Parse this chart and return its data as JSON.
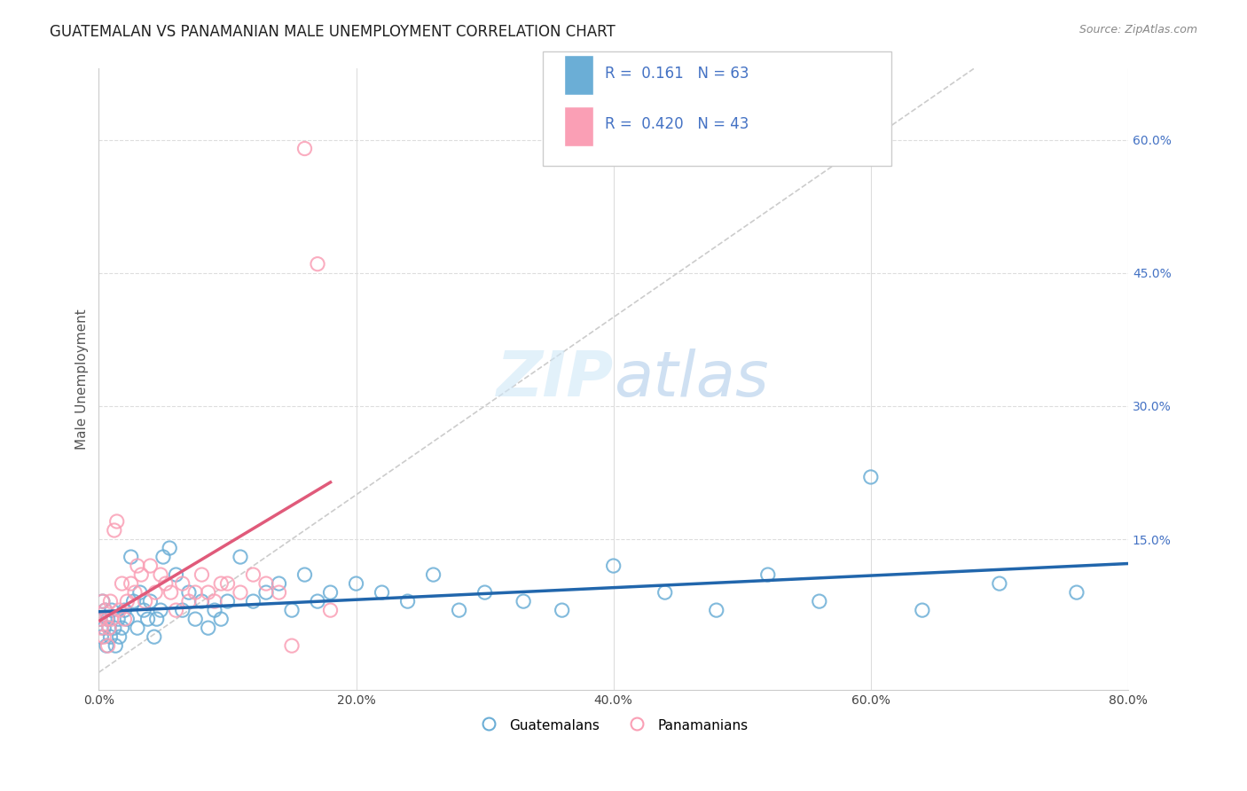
{
  "title": "GUATEMALAN VS PANAMANIAN MALE UNEMPLOYMENT CORRELATION CHART",
  "source_text": "Source: ZipAtlas.com",
  "ylabel": "Male Unemployment",
  "xlim": [
    0,
    0.8
  ],
  "ylim": [
    -0.02,
    0.68
  ],
  "x_tick_labels": [
    "0.0%",
    "20.0%",
    "40.0%",
    "60.0%",
    "80.0%"
  ],
  "x_ticks": [
    0.0,
    0.2,
    0.4,
    0.6,
    0.8
  ],
  "y_ticks_right": [
    0.15,
    0.3,
    0.45,
    0.6
  ],
  "y_tick_labels_right": [
    "15.0%",
    "30.0%",
    "45.0%",
    "60.0%"
  ],
  "legend_R1": "0.161",
  "legend_N1": "63",
  "legend_R2": "0.420",
  "legend_N2": "43",
  "color_blue": "#6baed6",
  "color_pink": "#fa9fb5",
  "color_line_blue": "#2166ac",
  "color_line_pink": "#e05a7a",
  "background_color": "#ffffff",
  "grid_color": "#dddddd",
  "guatemalan_x": [
    0.001,
    0.002,
    0.003,
    0.004,
    0.005,
    0.006,
    0.007,
    0.008,
    0.009,
    0.01,
    0.012,
    0.013,
    0.015,
    0.016,
    0.018,
    0.02,
    0.022,
    0.025,
    0.027,
    0.03,
    0.032,
    0.035,
    0.038,
    0.04,
    0.043,
    0.045,
    0.048,
    0.05,
    0.055,
    0.06,
    0.065,
    0.07,
    0.075,
    0.08,
    0.085,
    0.09,
    0.095,
    0.1,
    0.11,
    0.12,
    0.13,
    0.14,
    0.15,
    0.16,
    0.17,
    0.18,
    0.2,
    0.22,
    0.24,
    0.26,
    0.28,
    0.3,
    0.33,
    0.36,
    0.4,
    0.44,
    0.48,
    0.52,
    0.56,
    0.6,
    0.64,
    0.7,
    0.76
  ],
  "guatemalan_y": [
    0.06,
    0.04,
    0.08,
    0.05,
    0.07,
    0.03,
    0.06,
    0.05,
    0.04,
    0.07,
    0.05,
    0.03,
    0.06,
    0.04,
    0.05,
    0.07,
    0.06,
    0.13,
    0.08,
    0.05,
    0.09,
    0.07,
    0.06,
    0.08,
    0.04,
    0.06,
    0.07,
    0.13,
    0.14,
    0.11,
    0.07,
    0.09,
    0.06,
    0.08,
    0.05,
    0.07,
    0.06,
    0.08,
    0.13,
    0.08,
    0.09,
    0.1,
    0.07,
    0.11,
    0.08,
    0.09,
    0.1,
    0.09,
    0.08,
    0.11,
    0.07,
    0.09,
    0.08,
    0.07,
    0.12,
    0.09,
    0.07,
    0.11,
    0.08,
    0.22,
    0.07,
    0.1,
    0.09
  ],
  "panamanian_x": [
    0.001,
    0.002,
    0.003,
    0.004,
    0.005,
    0.006,
    0.007,
    0.008,
    0.009,
    0.01,
    0.012,
    0.014,
    0.016,
    0.018,
    0.02,
    0.022,
    0.025,
    0.028,
    0.03,
    0.033,
    0.036,
    0.04,
    0.044,
    0.048,
    0.052,
    0.056,
    0.06,
    0.065,
    0.07,
    0.075,
    0.08,
    0.085,
    0.09,
    0.095,
    0.1,
    0.11,
    0.12,
    0.13,
    0.14,
    0.15,
    0.16,
    0.17,
    0.18
  ],
  "panamanian_y": [
    0.06,
    0.05,
    0.08,
    0.04,
    0.07,
    0.06,
    0.03,
    0.05,
    0.08,
    0.06,
    0.16,
    0.17,
    0.07,
    0.1,
    0.06,
    0.08,
    0.1,
    0.09,
    0.12,
    0.11,
    0.08,
    0.12,
    0.09,
    0.11,
    0.1,
    0.09,
    0.07,
    0.1,
    0.08,
    0.09,
    0.11,
    0.09,
    0.08,
    0.1,
    0.1,
    0.09,
    0.11,
    0.1,
    0.09,
    0.03,
    0.59,
    0.46,
    0.07
  ]
}
